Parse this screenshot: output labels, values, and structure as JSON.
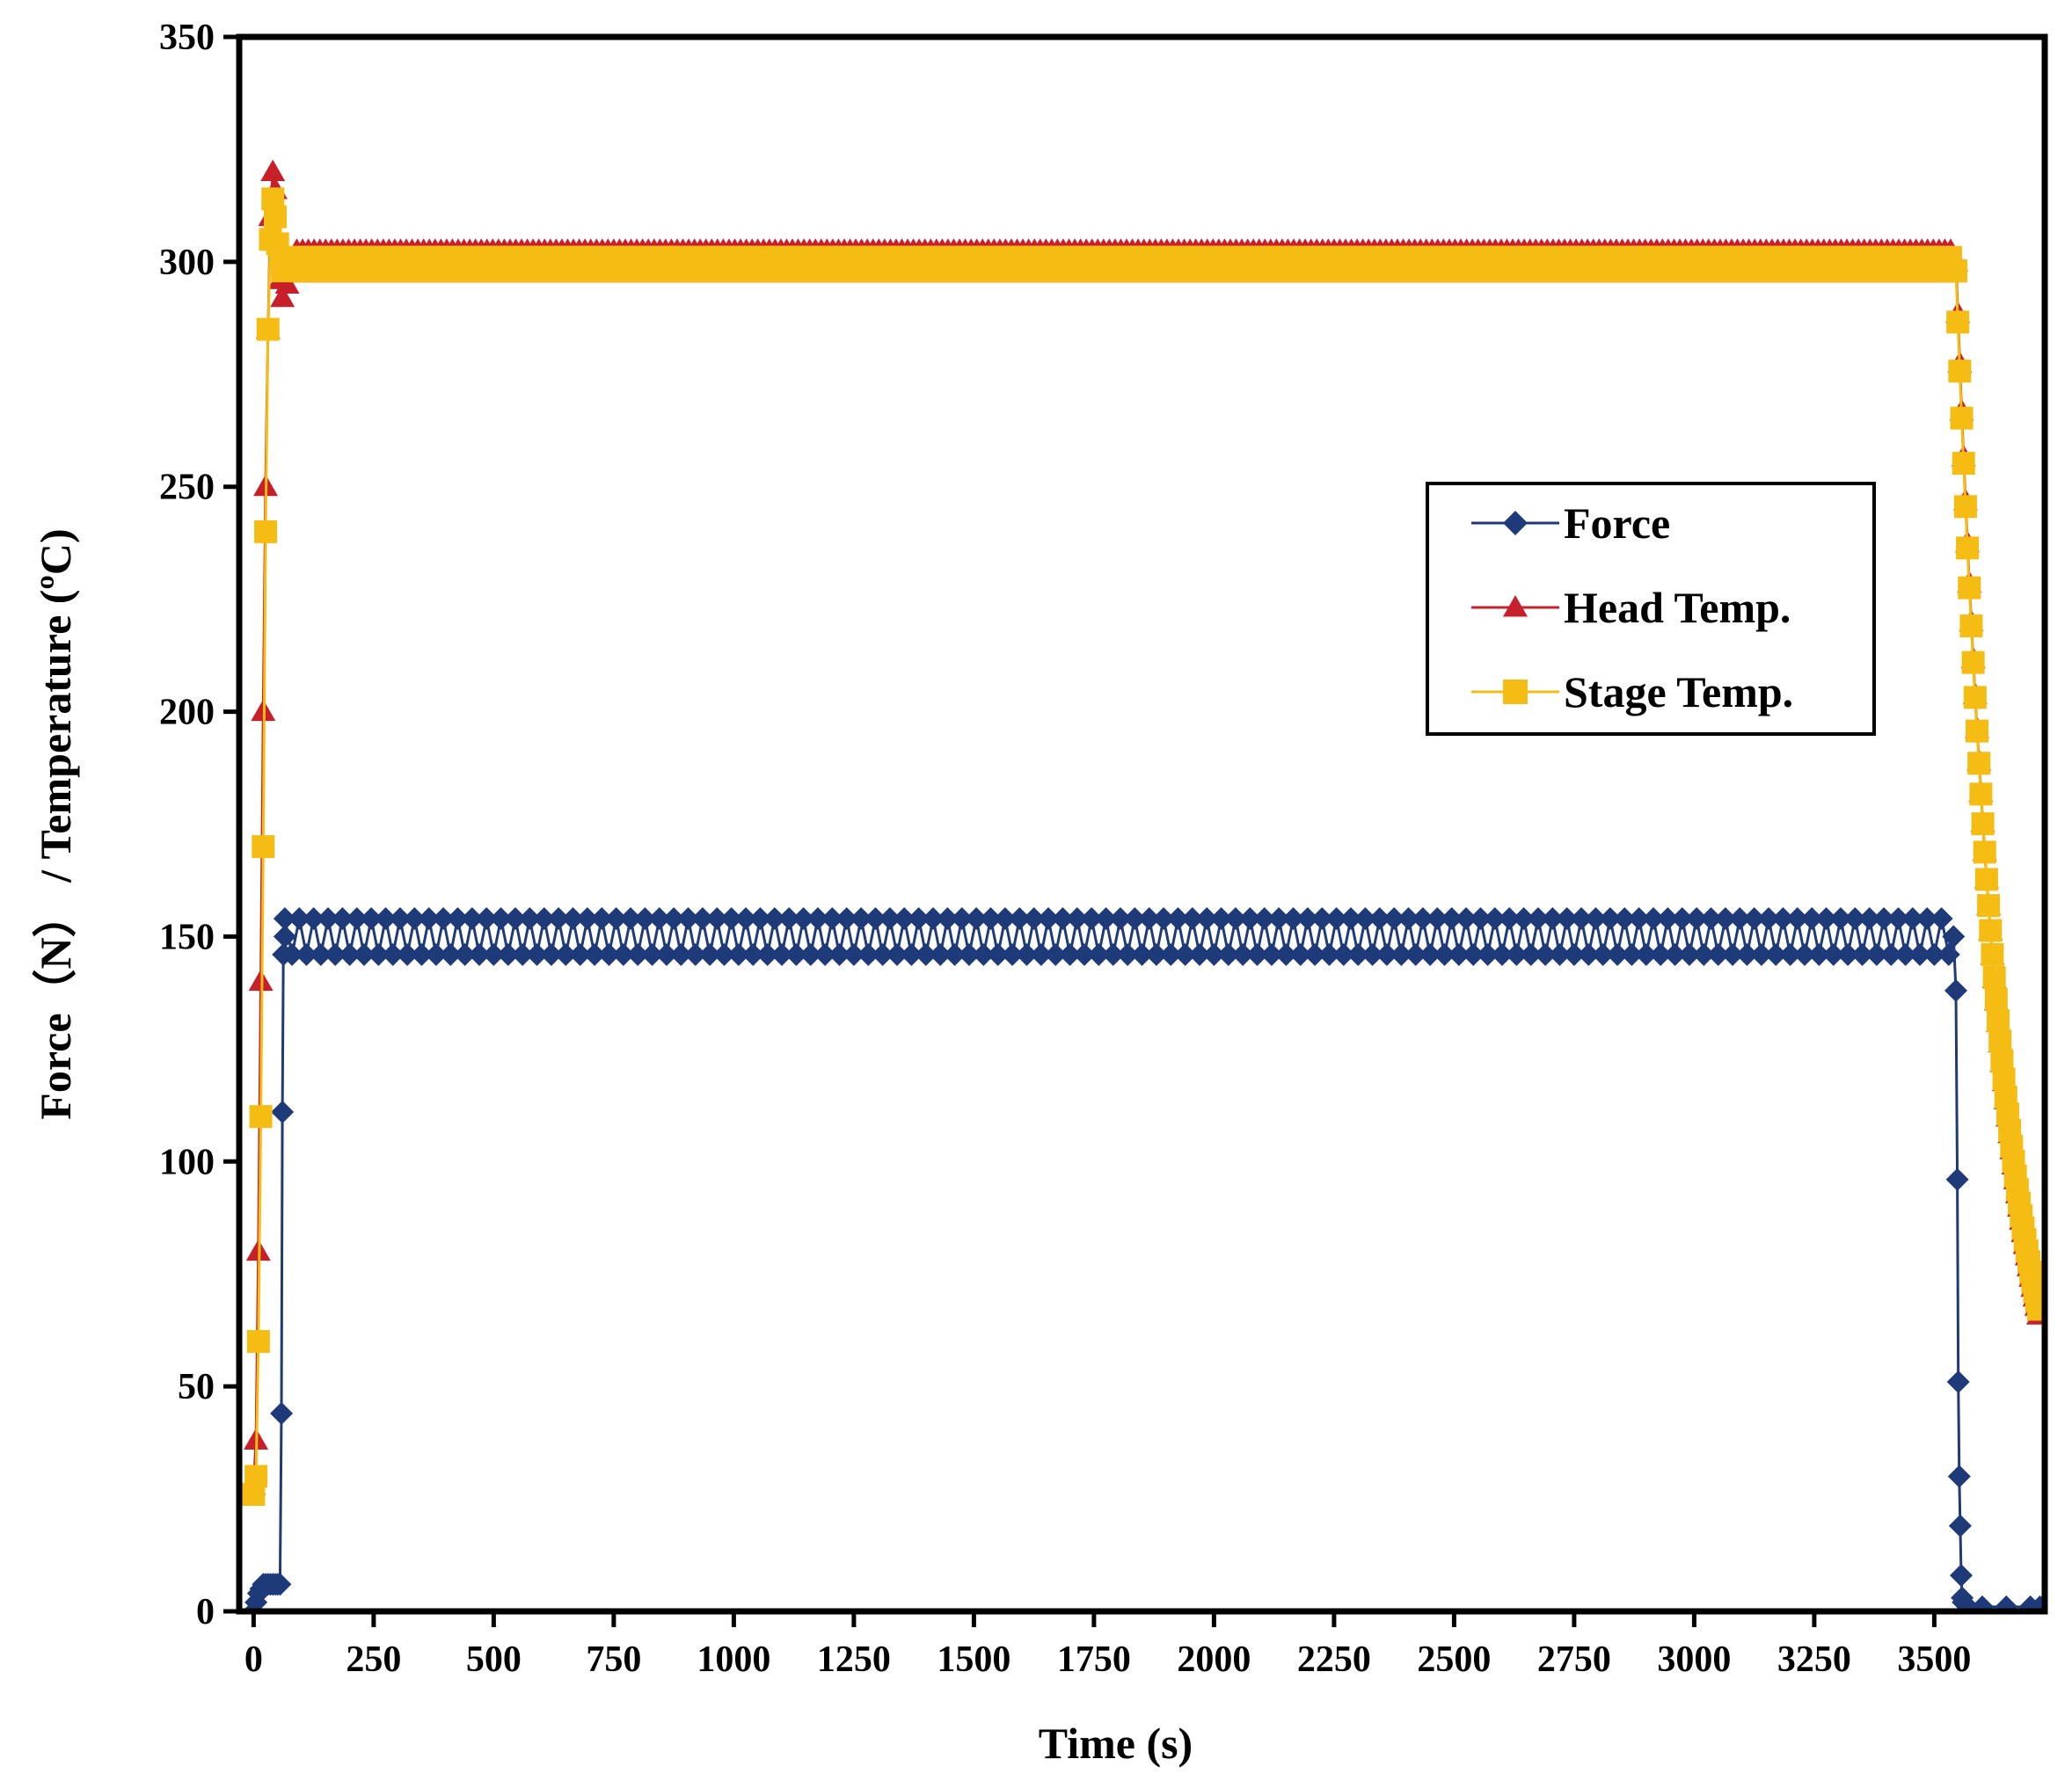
{
  "chart_data": {
    "type": "line",
    "title": "",
    "xlabel": "Time (s)",
    "ylabel": "Force（N） / Temperature (ºC)",
    "xlim": [
      -30,
      3730
    ],
    "ylim": [
      0,
      350
    ],
    "x_ticks": [
      0,
      250,
      500,
      750,
      1000,
      1250,
      1500,
      1750,
      2000,
      2250,
      2500,
      2750,
      3000,
      3250,
      3500
    ],
    "x_tick_labels": [
      "0",
      "250",
      "500",
      "750",
      "1000",
      "1250",
      "1500",
      "1750",
      "2000",
      "2250",
      "2500",
      "2750",
      "3000",
      "3250",
      "3500"
    ],
    "y_ticks": [
      0,
      50,
      100,
      150,
      200,
      250,
      300,
      350
    ],
    "y_tick_labels": [
      "0",
      "50",
      "100",
      "150",
      "200",
      "250",
      "300",
      "350"
    ],
    "grid": false,
    "legend_position": "right-middle",
    "series": [
      {
        "name": "Force",
        "color": "#1f3a78",
        "marker": "diamond",
        "segments": [
          {
            "x": [
              0,
              5,
              10,
              15,
              20,
              25,
              30,
              35,
              40,
              45,
              50,
              55,
              58,
              60,
              62,
              65
            ],
            "y": [
              0,
              2,
              4,
              5,
              6,
              6,
              6,
              6,
              6,
              6,
              6,
              6,
              44,
              111,
              146,
              150
            ]
          },
          {
            "range": [
              65,
              3540
            ],
            "base": 150,
            "amplitude": 4,
            "step": 15
          },
          {
            "x": [
              3540,
              3545,
              3548,
              3550,
              3552,
              3554,
              3556,
              3558,
              3560,
              3570,
              3600,
              3650,
              3700,
              3720
            ],
            "y": [
              150,
              138,
              96,
              51,
              30,
              19,
              8,
              3,
              2,
              1,
              1,
              1,
              1,
              1
            ]
          }
        ]
      },
      {
        "name": "Head Temp.",
        "color": "#c8202a",
        "marker": "triangle",
        "segments": [
          {
            "x": [
              0,
              5,
              10,
              15,
              20,
              25,
              30,
              35,
              40,
              45,
              50,
              55,
              60,
              70,
              80,
              90
            ],
            "y": [
              28,
              38,
              80,
              140,
              200,
              250,
              285,
              310,
              320,
              316,
              305,
              296,
              292,
              295,
              299,
              300
            ]
          },
          {
            "range": [
              90,
              3540
            ],
            "base": 300,
            "amplitude": 2.5,
            "step": 6
          },
          {
            "decay": {
              "x0": 3545,
              "x1": 3720,
              "y0": 300,
              "y_inf": 20,
              "tau": 95
            }
          }
        ]
      },
      {
        "name": "Stage Temp.",
        "color": "#f5bc14",
        "marker": "square",
        "segments": [
          {
            "x": [
              0,
              5,
              10,
              15,
              20,
              25,
              30,
              35,
              40,
              45,
              50,
              55,
              60,
              70,
              80,
              90
            ],
            "y": [
              26,
              30,
              60,
              110,
              170,
              240,
              285,
              305,
              314,
              310,
              304,
              300,
              298,
              299,
              300,
              300
            ]
          },
          {
            "range": [
              90,
              3540
            ],
            "base": 299.5,
            "amplitude": 1.5,
            "step": 6
          },
          {
            "decay": {
              "x0": 3545,
              "x1": 3720,
              "y0": 298,
              "y_inf": 22,
              "tau": 95
            }
          }
        ]
      }
    ]
  }
}
